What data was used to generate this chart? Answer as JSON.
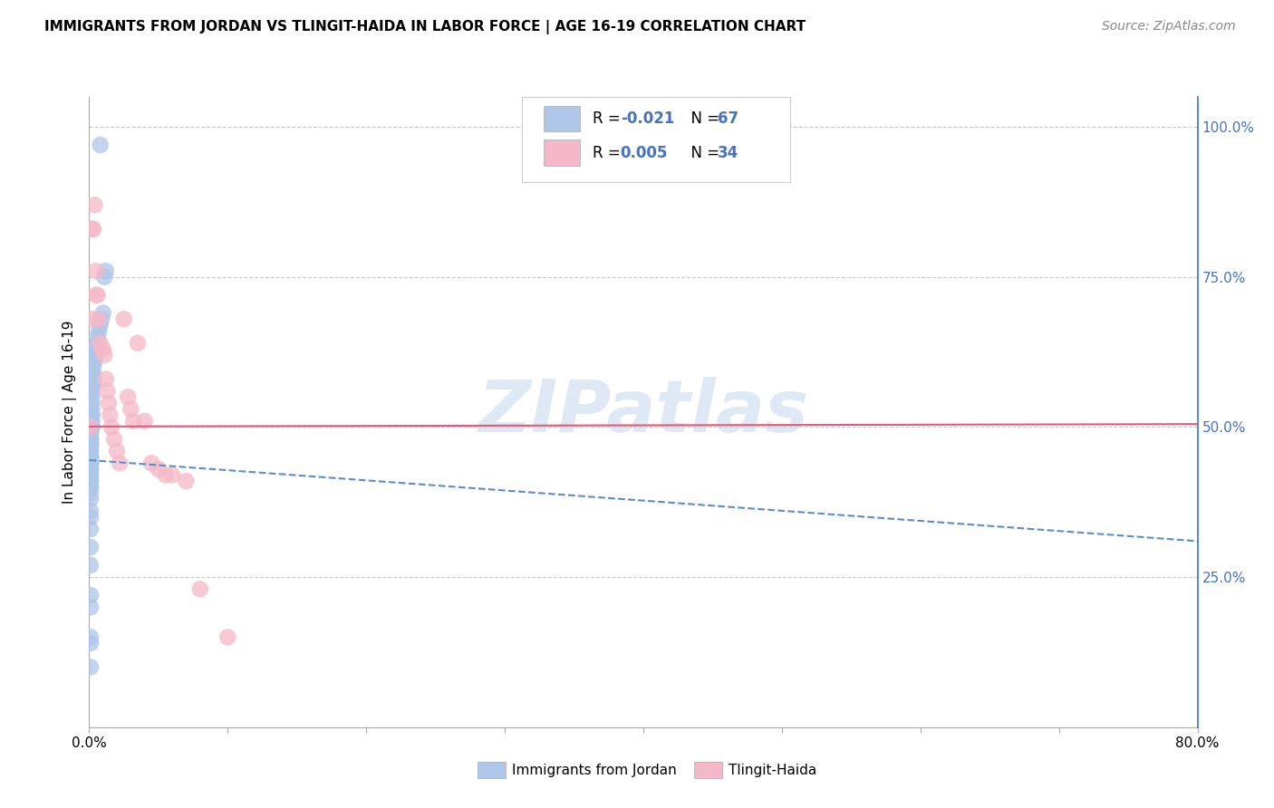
{
  "title": "IMMIGRANTS FROM JORDAN VS TLINGIT-HAIDA IN LABOR FORCE | AGE 16-19 CORRELATION CHART",
  "source": "Source: ZipAtlas.com",
  "ylabel": "In Labor Force | Age 16-19",
  "yticks": [
    0.0,
    0.25,
    0.5,
    0.75,
    1.0
  ],
  "ytick_labels_right": [
    "",
    "25.0%",
    "50.0%",
    "75.0%",
    "100.0%"
  ],
  "xlim": [
    0.0,
    0.8
  ],
  "ylim": [
    0.0,
    1.05
  ],
  "blue_R": "-0.021",
  "blue_N": "67",
  "pink_R": "0.005",
  "pink_N": "34",
  "blue_color": "#aec6e8",
  "pink_color": "#f5b8c8",
  "blue_line_color": "#5b8dc9",
  "pink_line_color": "#e05c7a",
  "watermark": "ZIPatlas",
  "blue_points_x": [
    0.008,
    0.001,
    0.001,
    0.001,
    0.001,
    0.001,
    0.001,
    0.001,
    0.001,
    0.001,
    0.001,
    0.001,
    0.001,
    0.001,
    0.001,
    0.001,
    0.001,
    0.001,
    0.001,
    0.001,
    0.001,
    0.001,
    0.001,
    0.001,
    0.001,
    0.001,
    0.001,
    0.001,
    0.001,
    0.001,
    0.001,
    0.001,
    0.001,
    0.001,
    0.001,
    0.001,
    0.001,
    0.001,
    0.001,
    0.001,
    0.002,
    0.002,
    0.002,
    0.002,
    0.002,
    0.002,
    0.002,
    0.002,
    0.002,
    0.002,
    0.003,
    0.003,
    0.003,
    0.003,
    0.003,
    0.004,
    0.004,
    0.004,
    0.005,
    0.006,
    0.006,
    0.007,
    0.008,
    0.009,
    0.01,
    0.011,
    0.012
  ],
  "blue_points_y": [
    0.97,
    0.1,
    0.14,
    0.15,
    0.2,
    0.22,
    0.27,
    0.3,
    0.33,
    0.35,
    0.36,
    0.38,
    0.39,
    0.4,
    0.4,
    0.41,
    0.41,
    0.42,
    0.42,
    0.43,
    0.43,
    0.43,
    0.44,
    0.44,
    0.44,
    0.45,
    0.45,
    0.45,
    0.45,
    0.46,
    0.46,
    0.47,
    0.47,
    0.47,
    0.48,
    0.48,
    0.48,
    0.49,
    0.49,
    0.5,
    0.5,
    0.5,
    0.51,
    0.52,
    0.52,
    0.53,
    0.54,
    0.55,
    0.56,
    0.57,
    0.57,
    0.58,
    0.58,
    0.59,
    0.6,
    0.61,
    0.62,
    0.62,
    0.63,
    0.64,
    0.65,
    0.66,
    0.67,
    0.68,
    0.69,
    0.75,
    0.76
  ],
  "pink_points_x": [
    0.001,
    0.002,
    0.002,
    0.003,
    0.004,
    0.005,
    0.005,
    0.006,
    0.007,
    0.008,
    0.009,
    0.01,
    0.011,
    0.012,
    0.013,
    0.014,
    0.015,
    0.016,
    0.018,
    0.02,
    0.022,
    0.025,
    0.028,
    0.03,
    0.032,
    0.035,
    0.04,
    0.045,
    0.05,
    0.055,
    0.06,
    0.07,
    0.08,
    0.1
  ],
  "pink_points_y": [
    0.5,
    0.68,
    0.83,
    0.83,
    0.87,
    0.76,
    0.72,
    0.72,
    0.68,
    0.64,
    0.63,
    0.63,
    0.62,
    0.58,
    0.56,
    0.54,
    0.52,
    0.5,
    0.48,
    0.46,
    0.44,
    0.68,
    0.55,
    0.53,
    0.51,
    0.64,
    0.51,
    0.44,
    0.43,
    0.42,
    0.42,
    0.41,
    0.23,
    0.15
  ],
  "blue_trend_x": [
    0.0,
    0.8
  ],
  "blue_trend_y": [
    0.445,
    0.31
  ],
  "pink_trend_x": [
    0.0,
    0.8
  ],
  "pink_trend_y": [
    0.501,
    0.505
  ],
  "xtick_positions": [
    0.0,
    0.1,
    0.2,
    0.3,
    0.4,
    0.5,
    0.6,
    0.7,
    0.8
  ],
  "xtick_labels": [
    "0.0%",
    "",
    "",
    "",
    "",
    "",
    "",
    "",
    "80.0%"
  ]
}
